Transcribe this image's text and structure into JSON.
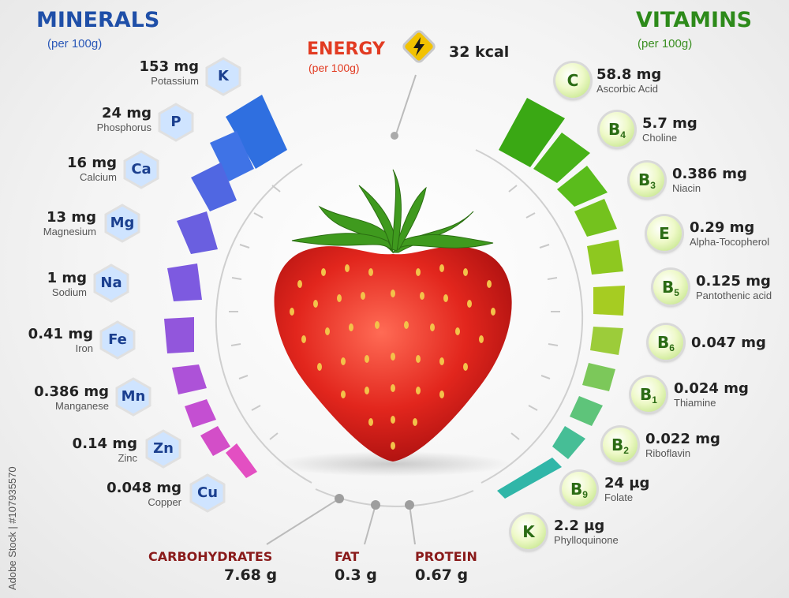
{
  "minerals": {
    "title": "MINERALS",
    "subtitle": "(per 100g)",
    "items": [
      {
        "amount": "153 mg",
        "name": "Potassium",
        "symbol": "K"
      },
      {
        "amount": "24 mg",
        "name": "Phosphorus",
        "symbol": "P"
      },
      {
        "amount": "16 mg",
        "name": "Calcium",
        "symbol": "Ca"
      },
      {
        "amount": "13 mg",
        "name": "Magnesium",
        "symbol": "Mg"
      },
      {
        "amount": "1 mg",
        "name": "Sodium",
        "symbol": "Na"
      },
      {
        "amount": "0.41 mg",
        "name": "Iron",
        "symbol": "Fe"
      },
      {
        "amount": "0.386 mg",
        "name": "Manganese",
        "symbol": "Mn"
      },
      {
        "amount": "0.14 mg",
        "name": "Zinc",
        "symbol": "Zn"
      },
      {
        "amount": "0.048 mg",
        "name": "Copper",
        "symbol": "Cu"
      }
    ]
  },
  "vitamins": {
    "title": "VITAMINS",
    "subtitle": "(per 100g)",
    "items": [
      {
        "amount": "58.8 mg",
        "name": "Ascorbic Acid",
        "symbol": "C",
        "sub": ""
      },
      {
        "amount": "5.7 mg",
        "name": "Choline",
        "symbol": "B",
        "sub": "4"
      },
      {
        "amount": "0.386 mg",
        "name": "Niacin",
        "symbol": "B",
        "sub": "3"
      },
      {
        "amount": "0.29 mg",
        "name": "Alpha-Tocopherol",
        "symbol": "E",
        "sub": ""
      },
      {
        "amount": "0.125 mg",
        "name": "Pantothenic acid",
        "symbol": "B",
        "sub": "5"
      },
      {
        "amount": "0.047 mg",
        "name": "",
        "symbol": "B",
        "sub": "6"
      },
      {
        "amount": "0.024 mg",
        "name": "Thiamine",
        "symbol": "B",
        "sub": "1"
      },
      {
        "amount": "0.022 mg",
        "name": "Riboflavin",
        "symbol": "B",
        "sub": "2"
      },
      {
        "amount": "24 µg",
        "name": "Folate",
        "symbol": "B",
        "sub": "9"
      },
      {
        "amount": "2.2 µg",
        "name": "Phylloquinone",
        "symbol": "K",
        "sub": ""
      }
    ]
  },
  "energy": {
    "title": "ENERGY",
    "subtitle": "(per 100g)",
    "value": "32 kcal"
  },
  "macros": [
    {
      "name": "CARBOHYDRATES",
      "value": "7.68 g"
    },
    {
      "name": "FAT",
      "value": "0.3 g"
    },
    {
      "name": "PROTEIN",
      "value": "0.67 g"
    }
  ],
  "watermark": "Adobe Stock | #107935570",
  "colors": {
    "minerals": "#1f4fa8",
    "vitamins": "#2d8a1a",
    "energy": "#e23b22",
    "macro": "#8a1b1b"
  }
}
